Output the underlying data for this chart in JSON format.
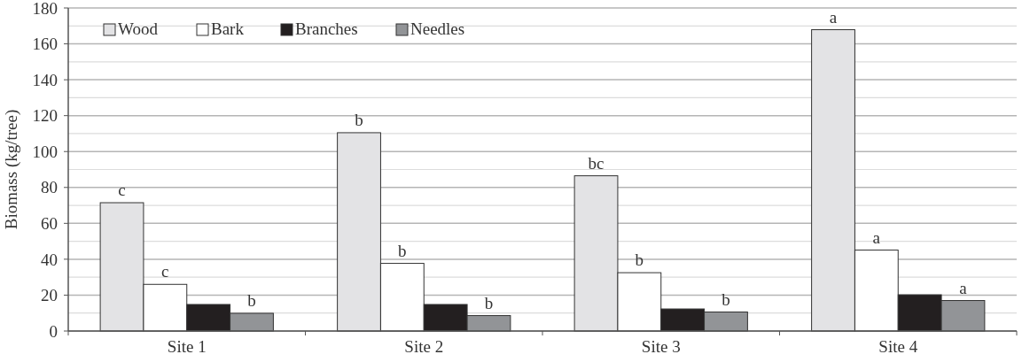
{
  "chart_data": {
    "type": "bar",
    "ylabel": "Biomass (kg/tree)",
    "categories": [
      "Site 1",
      "Site 2",
      "Site 3",
      "Site 4"
    ],
    "series": [
      {
        "name": "Wood",
        "color": "#e3e3e5",
        "values": [
          71.5,
          110.5,
          86.5,
          167.9
        ],
        "value_labels": [
          "c",
          "b",
          "bc",
          "a"
        ]
      },
      {
        "name": "Bark",
        "color": "#ffffff",
        "values": [
          26,
          37.7,
          32.5,
          45.1
        ],
        "value_labels": [
          "c",
          "b",
          "b",
          "a"
        ]
      },
      {
        "name": "Branches",
        "color": "#231f20",
        "values": [
          14.8,
          14.8,
          12.3,
          20.2
        ]
      },
      {
        "name": "Needles",
        "color": "#929497",
        "values": [
          9.9,
          8.6,
          10.6,
          17
        ],
        "value_labels": [
          "b",
          "b",
          "b",
          "a"
        ]
      }
    ],
    "ylim": [
      0,
      180
    ],
    "yticks": [
      0,
      {
        "value": 10,
        "label": null
      },
      20,
      {
        "value": 30,
        "label": null
      },
      40,
      {
        "value": 50,
        "label": null
      },
      60,
      {
        "value": 70,
        "label": null
      },
      80,
      {
        "value": 90,
        "label": null
      },
      100,
      {
        "value": 110,
        "label": null
      },
      120,
      {
        "value": 130,
        "label": null
      },
      140,
      {
        "value": 150,
        "label": null
      },
      160,
      {
        "value": 170,
        "label": null
      },
      180
    ],
    "grid": true,
    "legend": "top left"
  }
}
